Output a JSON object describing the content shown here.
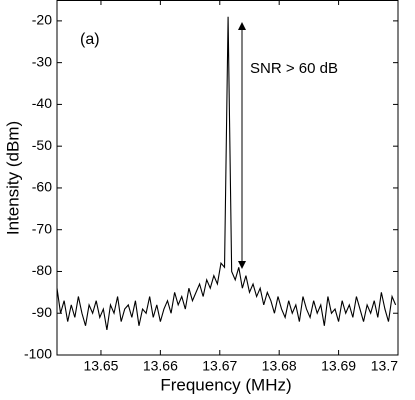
{
  "chart_data": {
    "type": "line",
    "xlabel": "Frequency (MHz)",
    "ylabel": "Intensity (dBm)",
    "annotations": [
      "(a)",
      "SNR > 60 dB"
    ],
    "x": [
      13.6426,
      13.6432,
      13.6438,
      13.6444,
      13.645,
      13.6456,
      13.6462,
      13.6468,
      13.6474,
      13.648,
      13.6486,
      13.6492,
      13.6498,
      13.6504,
      13.651,
      13.6516,
      13.6522,
      13.6528,
      13.6534,
      13.654,
      13.6546,
      13.6552,
      13.6558,
      13.6564,
      13.657,
      13.6576,
      13.6582,
      13.6588,
      13.6594,
      13.66,
      13.6606,
      13.6612,
      13.6618,
      13.6624,
      13.663,
      13.6636,
      13.6642,
      13.6648,
      13.6654,
      13.666,
      13.6666,
      13.6672,
      13.6678,
      13.6684,
      13.669,
      13.6696,
      13.6702,
      13.6708,
      13.6714,
      13.672,
      13.6726,
      13.6732,
      13.6738,
      13.6744,
      13.675,
      13.6756,
      13.6762,
      13.6768,
      13.6774,
      13.678,
      13.6786,
      13.6792,
      13.6798,
      13.6804,
      13.681,
      13.6816,
      13.6822,
      13.6828,
      13.6834,
      13.684,
      13.6846,
      13.6852,
      13.6858,
      13.6864,
      13.687,
      13.6876,
      13.6882,
      13.6888,
      13.6894,
      13.69,
      13.6906,
      13.6912,
      13.6918,
      13.6924,
      13.693,
      13.6936,
      13.6942,
      13.6948,
      13.6954,
      13.696,
      13.6966,
      13.6972,
      13.6978,
      13.6984,
      13.699,
      13.6996
    ],
    "series": [
      {
        "color": "#000000",
        "values": [
          -84,
          -90,
          -87,
          -92,
          -88,
          -91,
          -86,
          -90,
          -93,
          -88,
          -90,
          -87,
          -91,
          -89,
          -94,
          -88,
          -90,
          -86,
          -92,
          -89,
          -88,
          -91,
          -87,
          -93,
          -89,
          -90,
          -86,
          -91,
          -88,
          -92,
          -89,
          -87,
          -90,
          -85,
          -88,
          -86,
          -89,
          -84,
          -87,
          -85,
          -83,
          -86,
          -82,
          -84,
          -81,
          -83,
          -78,
          -79,
          -19,
          -80,
          -82,
          -79,
          -84,
          -81,
          -85,
          -83,
          -86,
          -84,
          -88,
          -85,
          -87,
          -90,
          -86,
          -89,
          -91,
          -87,
          -90,
          -88,
          -92,
          -86,
          -89,
          -91,
          -87,
          -90,
          -88,
          -93,
          -86,
          -90,
          -89,
          -92,
          -87,
          -90,
          -88,
          -91,
          -86,
          -89,
          -92,
          -88,
          -90,
          -87,
          -91,
          -85,
          -89,
          -92,
          -86,
          -88
        ]
      }
    ],
    "xlim": [
      13.6426,
      13.7
    ],
    "xticks": [
      13.65,
      13.66,
      13.67,
      13.68,
      13.69,
      13.7
    ],
    "ylim": [
      -100,
      -15
    ],
    "yticks": [
      -100,
      -90,
      -80,
      -70,
      -60,
      -50,
      -40,
      -30,
      -20
    ],
    "grid": false
  }
}
